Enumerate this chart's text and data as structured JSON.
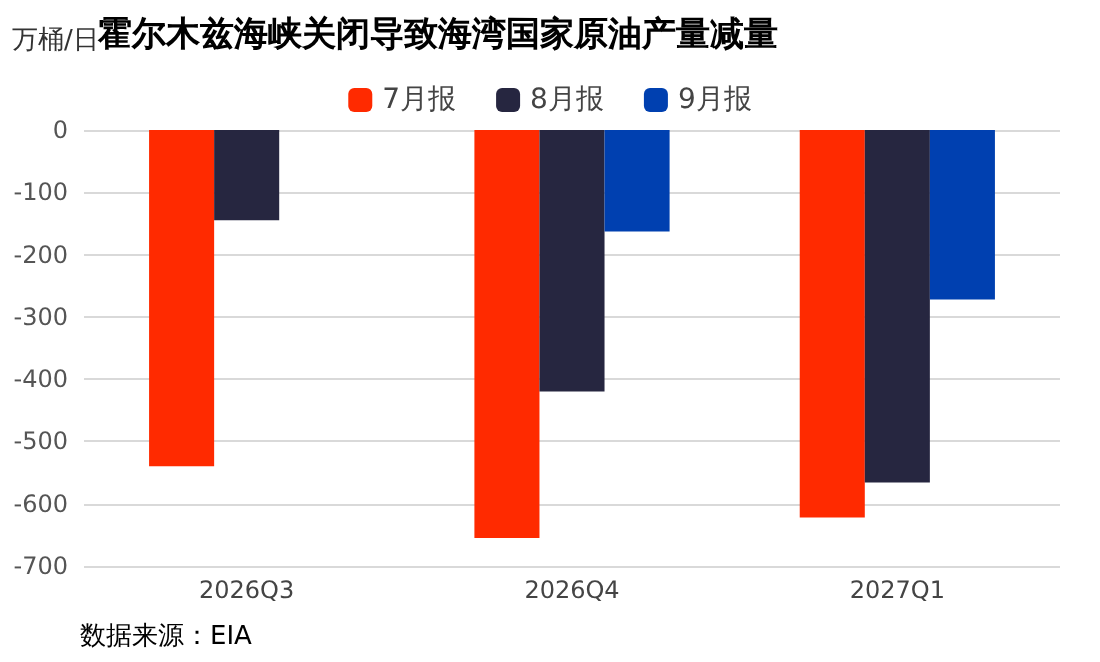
{
  "chart_data": {
    "type": "bar",
    "title": "霍尔木兹海峡关闭导致海湾国家原油产量减量",
    "ylabel": "万桶/日",
    "categories": [
      "2026Q3",
      "2026Q4",
      "2027Q1"
    ],
    "series": [
      {
        "name": "7月报",
        "color": "#ff2a00",
        "values": [
          -540,
          -655,
          -622
        ]
      },
      {
        "name": "8月报",
        "color": "#262640",
        "values": [
          -145,
          -420,
          -566
        ]
      },
      {
        "name": "9月报",
        "color": "#0040b0",
        "values": [
          null,
          -163,
          -272
        ]
      }
    ],
    "ylim": [
      -700,
      0
    ],
    "yticks": [
      -700,
      -600,
      -500,
      -400,
      -300,
      -200,
      -100,
      0
    ],
    "grid": "y",
    "legend": "top",
    "annotations": [
      "数据来源：EIA"
    ]
  }
}
